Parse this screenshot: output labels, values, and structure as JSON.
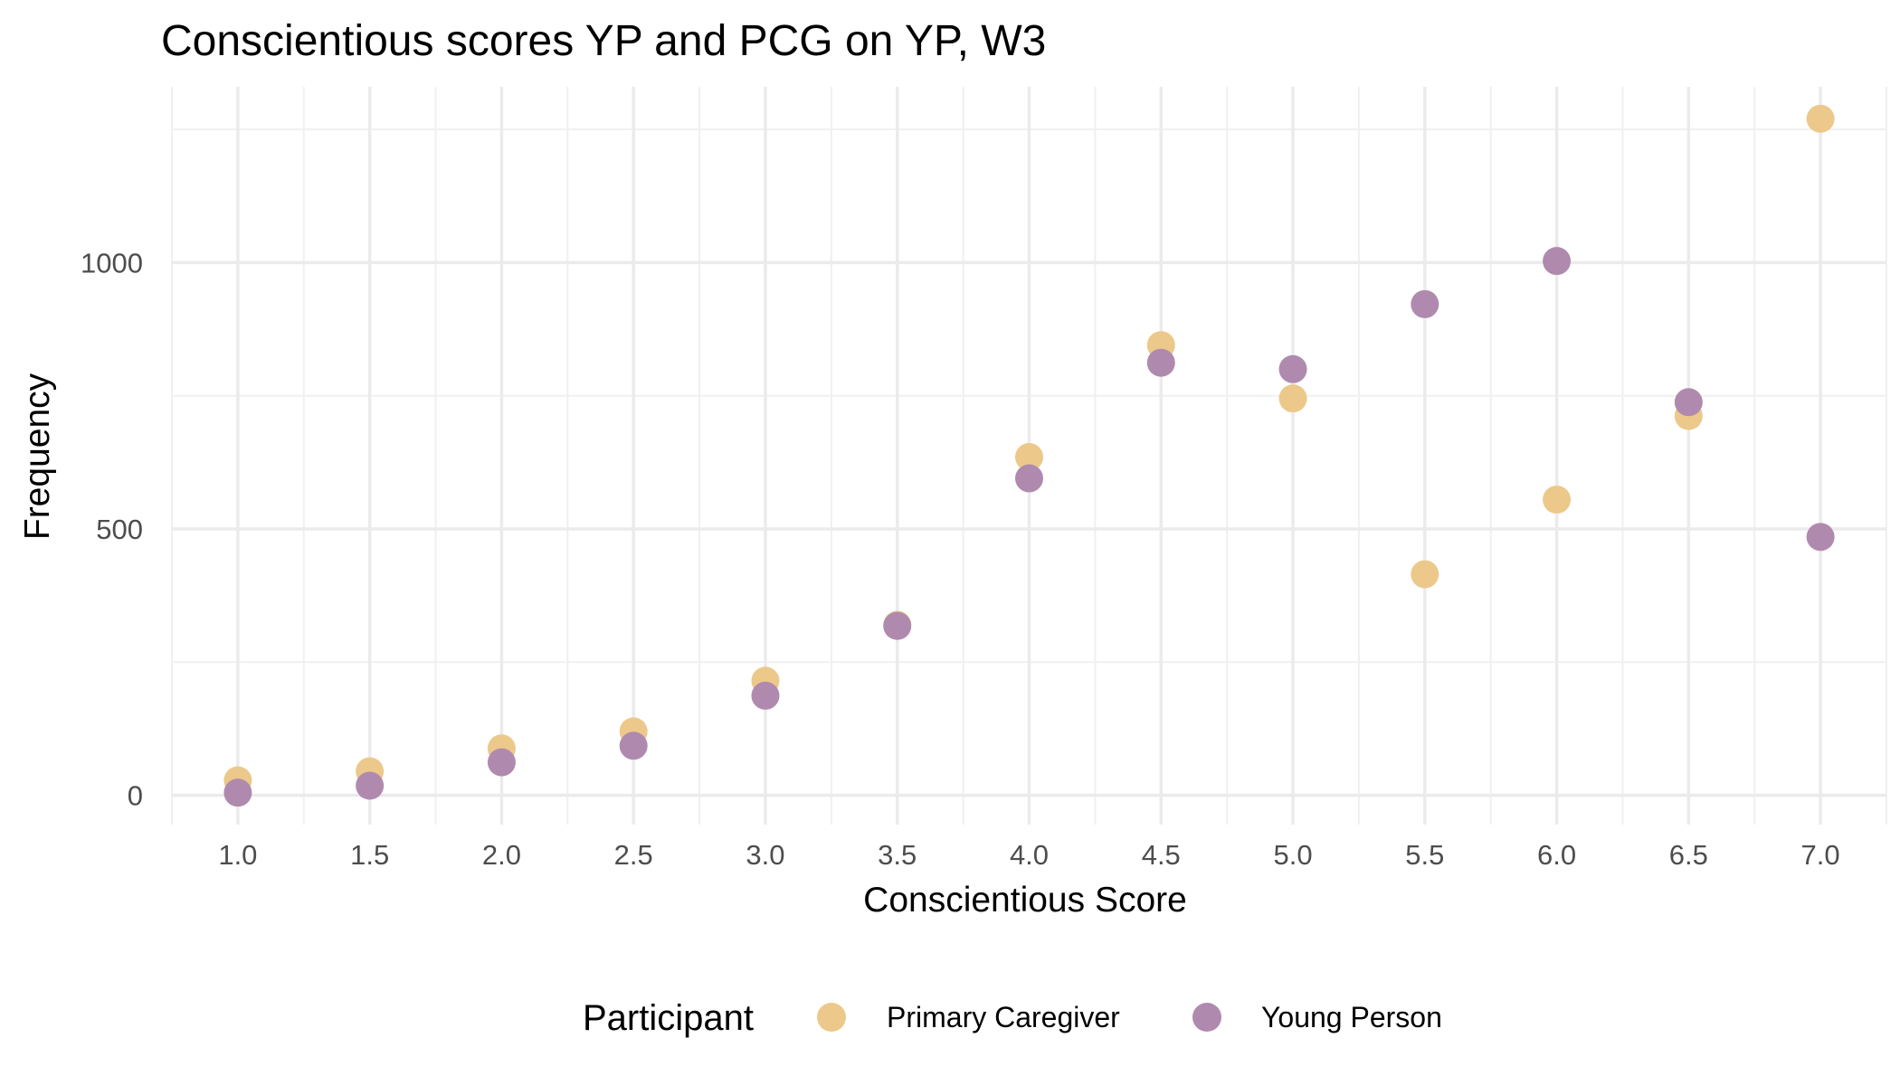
{
  "chart_data": {
    "type": "scatter",
    "title": "Conscientious scores YP and PCG on YP, W3",
    "xlabel": "Conscientious Score",
    "ylabel": "Frequency",
    "x_ticks": [
      "1.0",
      "1.5",
      "2.0",
      "2.5",
      "3.0",
      "3.5",
      "4.0",
      "4.5",
      "5.0",
      "5.5",
      "6.0",
      "6.5",
      "7.0"
    ],
    "y_ticks": [
      "0",
      "500",
      "1000"
    ],
    "xlim": [
      0.75,
      7.25
    ],
    "ylim": [
      -55,
      1330
    ],
    "grid": true,
    "legend": {
      "title": "Participant",
      "placement": "bottom"
    },
    "series": [
      {
        "name": "Primary Caregiver",
        "color": "#ECC98A",
        "x": [
          1.0,
          1.5,
          2.0,
          2.5,
          3.0,
          3.5,
          4.0,
          4.5,
          5.0,
          5.5,
          6.0,
          6.5,
          7.0
        ],
        "y": [
          28,
          45,
          88,
          120,
          215,
          320,
          635,
          845,
          745,
          415,
          555,
          712,
          1270
        ]
      },
      {
        "name": "Young Person",
        "color": "#B08AAE",
        "x": [
          1.0,
          1.5,
          2.0,
          2.5,
          3.0,
          3.5,
          4.0,
          4.5,
          5.0,
          5.5,
          6.0,
          6.5,
          7.0
        ],
        "y": [
          5,
          18,
          62,
          93,
          187,
          318,
          595,
          812,
          800,
          922,
          1003,
          738,
          485
        ]
      }
    ]
  }
}
